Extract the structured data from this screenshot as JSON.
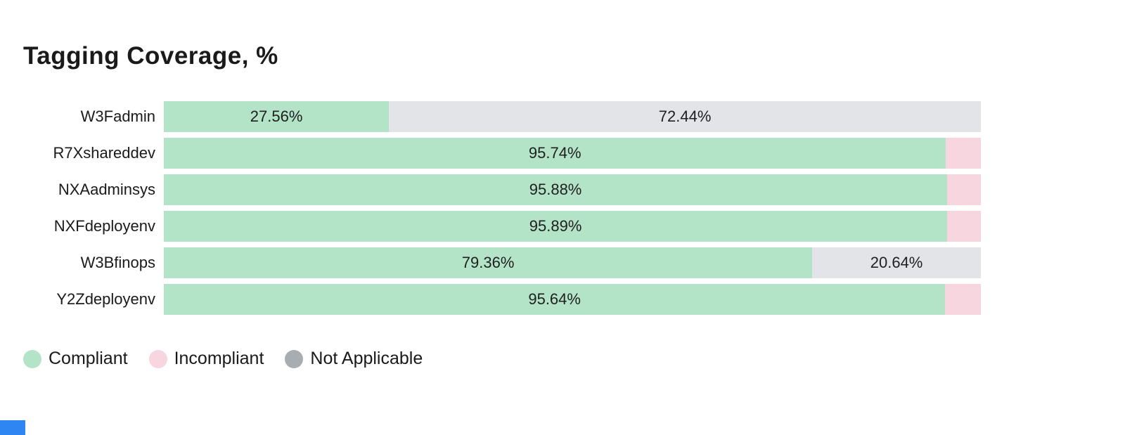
{
  "title": "Tagging Coverage, %",
  "colors": {
    "compliant": "#b4e4c8",
    "incompliant": "#f8d6e0",
    "not_applicable_bar": "#e2e4e7",
    "not_applicable_legend": "#a8adb2",
    "accent_blue": "#2e86f2",
    "text": "#1a1a1a"
  },
  "chart_data": {
    "type": "bar",
    "orientation": "horizontal",
    "stacked": true,
    "unit": "%",
    "title": "Tagging Coverage, %",
    "xlim": [
      0,
      100
    ],
    "grid": false,
    "legend_position": "bottom",
    "categories": [
      "W3Fadmin",
      "R7Xshareddev",
      "NXAadminsys",
      "NXFdeployenv",
      "W3Bfinops",
      "Y2Zdeployenv"
    ],
    "rows": [
      {
        "category": "W3Fadmin",
        "segments": [
          {
            "series": "Compliant",
            "value": 27.56,
            "label": "27.56%"
          },
          {
            "series": "Not Applicable",
            "value": 72.44,
            "label": "72.44%"
          }
        ]
      },
      {
        "category": "R7Xshareddev",
        "segments": [
          {
            "series": "Compliant",
            "value": 95.74,
            "label": "95.74%"
          },
          {
            "series": "Incompliant",
            "value": 4.26,
            "label": ""
          }
        ]
      },
      {
        "category": "NXAadminsys",
        "segments": [
          {
            "series": "Compliant",
            "value": 95.88,
            "label": "95.88%"
          },
          {
            "series": "Incompliant",
            "value": 4.12,
            "label": ""
          }
        ]
      },
      {
        "category": "NXFdeployenv",
        "segments": [
          {
            "series": "Compliant",
            "value": 95.89,
            "label": "95.89%"
          },
          {
            "series": "Incompliant",
            "value": 4.11,
            "label": ""
          }
        ]
      },
      {
        "category": "W3Bfinops",
        "segments": [
          {
            "series": "Compliant",
            "value": 79.36,
            "label": "79.36%"
          },
          {
            "series": "Not Applicable",
            "value": 20.64,
            "label": "20.64%"
          }
        ]
      },
      {
        "category": "Y2Zdeployenv",
        "segments": [
          {
            "series": "Compliant",
            "value": 95.64,
            "label": "95.64%"
          },
          {
            "series": "Incompliant",
            "value": 4.36,
            "label": ""
          }
        ]
      }
    ],
    "legend": [
      {
        "label": "Compliant",
        "color": "#b4e4c8"
      },
      {
        "label": "Incompliant",
        "color": "#f8d6e0"
      },
      {
        "label": "Not Applicable",
        "color": "#a8adb2"
      }
    ]
  }
}
